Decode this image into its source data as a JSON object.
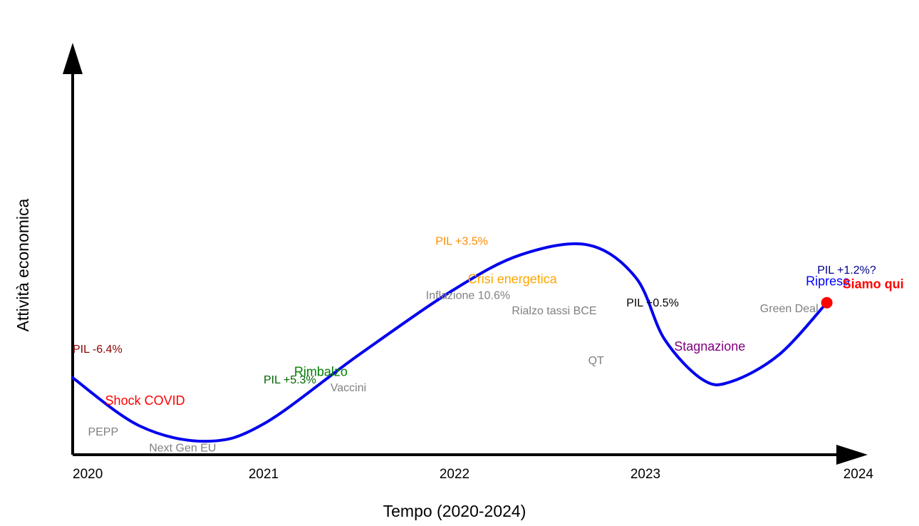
{
  "chart_data": {
    "type": "line",
    "title": "",
    "xlabel": "Tempo (2020-2024)",
    "ylabel": "Attività economica",
    "xlim": [
      2020,
      2024
    ],
    "ylim": [
      0,
      10
    ],
    "x_ticks": [
      "2020",
      "2021",
      "2022",
      "2023",
      "2024"
    ],
    "series": [
      {
        "name": "Attività economica",
        "color": "#0000ee",
        "points": [
          [
            2020.0,
            2.0
          ],
          [
            2020.35,
            0.75
          ],
          [
            2020.7,
            0.35
          ],
          [
            2021.0,
            0.8
          ],
          [
            2021.5,
            2.6
          ],
          [
            2022.0,
            4.3
          ],
          [
            2022.35,
            5.2
          ],
          [
            2022.7,
            5.45
          ],
          [
            2022.95,
            4.6
          ],
          [
            2023.1,
            3.0
          ],
          [
            2023.3,
            1.95
          ],
          [
            2023.45,
            1.9
          ],
          [
            2023.7,
            2.6
          ],
          [
            2023.95,
            3.95
          ]
        ]
      }
    ],
    "marker": {
      "label": "Siamo qui",
      "x": 2023.95,
      "y": 3.95,
      "color": "#ff0000"
    },
    "annotations": [
      {
        "text": "Shock COVID",
        "x": 2020.17,
        "y": 1.3,
        "color": "#ff0000",
        "size": "large"
      },
      {
        "text": "PIL -6.4%",
        "x": 2020.0,
        "y": 2.65,
        "color": "#8b0000",
        "size": "medium"
      },
      {
        "text": "PEPP",
        "x": 2020.08,
        "y": 0.5,
        "color": "#808080",
        "size": "medium"
      },
      {
        "text": "Next Gen EU",
        "x": 2020.4,
        "y": 0.08,
        "color": "#808080",
        "size": "medium"
      },
      {
        "text": "Rimbalzo",
        "x": 2021.16,
        "y": 2.05,
        "color": "#008000",
        "size": "large"
      },
      {
        "text": "PIL +5.3%",
        "x": 2021.0,
        "y": 1.85,
        "color": "#006400",
        "size": "medium"
      },
      {
        "text": "Vaccini",
        "x": 2021.35,
        "y": 1.65,
        "color": "#808080",
        "size": "medium"
      },
      {
        "text": "Crisi energetica",
        "x": 2022.07,
        "y": 4.45,
        "color": "#ffa500",
        "size": "large"
      },
      {
        "text": "PIL +3.5%",
        "x": 2021.9,
        "y": 5.45,
        "color": "#ff8c00",
        "size": "medium"
      },
      {
        "text": "Inflazione 10.6%",
        "x": 2021.85,
        "y": 4.05,
        "color": "#808080",
        "size": "medium"
      },
      {
        "text": "Rialzo tassi BCE",
        "x": 2022.3,
        "y": 3.65,
        "color": "#808080",
        "size": "medium"
      },
      {
        "text": "QT",
        "x": 2022.7,
        "y": 2.35,
        "color": "#808080",
        "size": "medium"
      },
      {
        "text": "Stagnazione",
        "x": 2023.15,
        "y": 2.7,
        "color": "#800080",
        "size": "large"
      },
      {
        "text": "PIL +0.5%",
        "x": 2022.9,
        "y": 3.85,
        "color": "#000000",
        "size": "medium"
      },
      {
        "text": "Ripresa",
        "x": 2023.84,
        "y": 4.4,
        "color": "#0000ff",
        "size": "large"
      },
      {
        "text": "PIL +1.2%?",
        "x": 2023.9,
        "y": 4.7,
        "color": "#00008b",
        "size": "medium"
      },
      {
        "text": "Green Deal",
        "x": 2023.6,
        "y": 3.7,
        "color": "#808080",
        "size": "medium"
      }
    ]
  }
}
